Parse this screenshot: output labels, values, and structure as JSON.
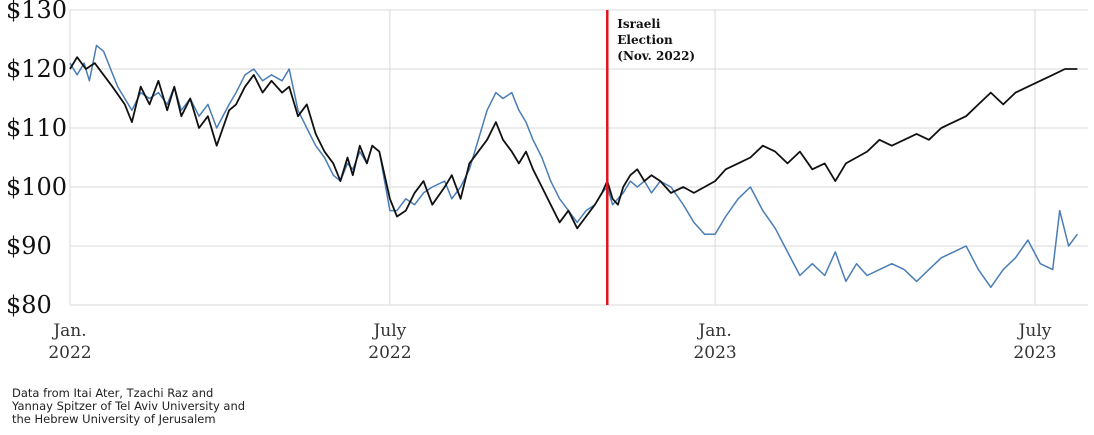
{
  "chart_data": {
    "type": "line",
    "title": "",
    "xlabel": "",
    "ylabel": "",
    "x_range": [
      "2022-01-01",
      "2023-07-31"
    ],
    "ylim": [
      80,
      130
    ],
    "yticks": [
      {
        "value": 130,
        "label": "$130"
      },
      {
        "value": 120,
        "label": "$120"
      },
      {
        "value": 110,
        "label": "$110"
      },
      {
        "value": 100,
        "label": "$100"
      },
      {
        "value": 90,
        "label": "$90"
      },
      {
        "value": 80,
        "label": "$80"
      }
    ],
    "xticks": [
      {
        "date": "2022-01-01",
        "line1": "Jan.",
        "line2": "2022"
      },
      {
        "date": "2022-07-01",
        "line1": "July",
        "line2": "2022"
      },
      {
        "date": "2023-01-01",
        "line1": "Jan.",
        "line2": "2023"
      },
      {
        "date": "2023-07-01",
        "line1": "July",
        "line2": "2023"
      }
    ],
    "grid": true,
    "series": [
      {
        "color": "#111111",
        "points": [
          [
            "2022-01-01",
            120
          ],
          [
            "2022-01-05",
            122
          ],
          [
            "2022-01-10",
            120
          ],
          [
            "2022-01-15",
            121
          ],
          [
            "2022-01-20",
            119
          ],
          [
            "2022-01-25",
            117
          ],
          [
            "2022-02-01",
            114
          ],
          [
            "2022-02-05",
            111
          ],
          [
            "2022-02-10",
            117
          ],
          [
            "2022-02-15",
            114
          ],
          [
            "2022-02-20",
            118
          ],
          [
            "2022-02-25",
            113
          ],
          [
            "2022-03-01",
            117
          ],
          [
            "2022-03-05",
            112
          ],
          [
            "2022-03-10",
            115
          ],
          [
            "2022-03-15",
            110
          ],
          [
            "2022-03-20",
            112
          ],
          [
            "2022-03-25",
            107
          ],
          [
            "2022-04-01",
            113
          ],
          [
            "2022-04-05",
            114
          ],
          [
            "2022-04-10",
            117
          ],
          [
            "2022-04-15",
            119
          ],
          [
            "2022-04-20",
            116
          ],
          [
            "2022-04-25",
            118
          ],
          [
            "2022-05-01",
            116
          ],
          [
            "2022-05-05",
            117
          ],
          [
            "2022-05-10",
            112
          ],
          [
            "2022-05-15",
            114
          ],
          [
            "2022-05-20",
            109
          ],
          [
            "2022-05-25",
            106
          ],
          [
            "2022-05-30",
            104
          ],
          [
            "2022-06-03",
            101
          ],
          [
            "2022-06-07",
            105
          ],
          [
            "2022-06-10",
            102
          ],
          [
            "2022-06-14",
            107
          ],
          [
            "2022-06-18",
            104
          ],
          [
            "2022-06-21",
            107
          ],
          [
            "2022-06-25",
            106
          ],
          [
            "2022-06-28",
            102
          ],
          [
            "2022-07-01",
            98
          ],
          [
            "2022-07-05",
            95
          ],
          [
            "2022-07-10",
            96
          ],
          [
            "2022-07-15",
            99
          ],
          [
            "2022-07-20",
            101
          ],
          [
            "2022-07-25",
            97
          ],
          [
            "2022-08-01",
            100
          ],
          [
            "2022-08-05",
            102
          ],
          [
            "2022-08-10",
            98
          ],
          [
            "2022-08-15",
            104
          ],
          [
            "2022-08-20",
            106
          ],
          [
            "2022-08-25",
            108
          ],
          [
            "2022-08-30",
            111
          ],
          [
            "2022-09-03",
            108
          ],
          [
            "2022-09-08",
            106
          ],
          [
            "2022-09-12",
            104
          ],
          [
            "2022-09-16",
            106
          ],
          [
            "2022-09-20",
            103
          ],
          [
            "2022-09-25",
            100
          ],
          [
            "2022-09-30",
            97
          ],
          [
            "2022-10-05",
            94
          ],
          [
            "2022-10-10",
            96
          ],
          [
            "2022-10-15",
            93
          ],
          [
            "2022-10-20",
            95
          ],
          [
            "2022-10-25",
            97
          ],
          [
            "2022-10-29",
            99
          ],
          [
            "2022-11-01",
            101
          ],
          [
            "2022-11-04",
            98
          ],
          [
            "2022-11-07",
            97
          ],
          [
            "2022-11-10",
            100
          ],
          [
            "2022-11-14",
            102
          ],
          [
            "2022-11-18",
            103
          ],
          [
            "2022-11-22",
            101
          ],
          [
            "2022-11-26",
            102
          ],
          [
            "2022-12-01",
            101
          ],
          [
            "2022-12-07",
            99
          ],
          [
            "2022-12-14",
            100
          ],
          [
            "2022-12-20",
            99
          ],
          [
            "2022-12-26",
            100
          ],
          [
            "2023-01-01",
            101
          ],
          [
            "2023-01-07",
            103
          ],
          [
            "2023-01-14",
            104
          ],
          [
            "2023-01-21",
            105
          ],
          [
            "2023-01-28",
            107
          ],
          [
            "2023-02-04",
            106
          ],
          [
            "2023-02-11",
            104
          ],
          [
            "2023-02-18",
            106
          ],
          [
            "2023-02-25",
            103
          ],
          [
            "2023-03-04",
            104
          ],
          [
            "2023-03-10",
            101
          ],
          [
            "2023-03-16",
            104
          ],
          [
            "2023-03-22",
            105
          ],
          [
            "2023-03-28",
            106
          ],
          [
            "2023-04-04",
            108
          ],
          [
            "2023-04-11",
            107
          ],
          [
            "2023-04-18",
            108
          ],
          [
            "2023-04-25",
            109
          ],
          [
            "2023-05-02",
            108
          ],
          [
            "2023-05-09",
            110
          ],
          [
            "2023-05-16",
            111
          ],
          [
            "2023-05-23",
            112
          ],
          [
            "2023-05-30",
            114
          ],
          [
            "2023-06-06",
            116
          ],
          [
            "2023-06-13",
            114
          ],
          [
            "2023-06-20",
            116
          ],
          [
            "2023-06-27",
            117
          ],
          [
            "2023-07-04",
            118
          ],
          [
            "2023-07-11",
            119
          ],
          [
            "2023-07-18",
            120
          ],
          [
            "2023-07-25",
            120
          ]
        ]
      },
      {
        "color": "#4a7db5",
        "points": [
          [
            "2022-01-01",
            121
          ],
          [
            "2022-01-05",
            119
          ],
          [
            "2022-01-09",
            121
          ],
          [
            "2022-01-12",
            118
          ],
          [
            "2022-01-16",
            124
          ],
          [
            "2022-01-20",
            123
          ],
          [
            "2022-01-24",
            120
          ],
          [
            "2022-01-28",
            117
          ],
          [
            "2022-02-01",
            115
          ],
          [
            "2022-02-05",
            113
          ],
          [
            "2022-02-10",
            116
          ],
          [
            "2022-02-15",
            115
          ],
          [
            "2022-02-20",
            116
          ],
          [
            "2022-02-25",
            114
          ],
          [
            "2022-03-01",
            117
          ],
          [
            "2022-03-05",
            113
          ],
          [
            "2022-03-10",
            115
          ],
          [
            "2022-03-15",
            112
          ],
          [
            "2022-03-20",
            114
          ],
          [
            "2022-03-25",
            110
          ],
          [
            "2022-04-01",
            114
          ],
          [
            "2022-04-05",
            116
          ],
          [
            "2022-04-10",
            119
          ],
          [
            "2022-04-15",
            120
          ],
          [
            "2022-04-20",
            118
          ],
          [
            "2022-04-25",
            119
          ],
          [
            "2022-05-01",
            118
          ],
          [
            "2022-05-05",
            120
          ],
          [
            "2022-05-10",
            113
          ],
          [
            "2022-05-15",
            110
          ],
          [
            "2022-05-20",
            107
          ],
          [
            "2022-05-25",
            105
          ],
          [
            "2022-05-30",
            102
          ],
          [
            "2022-06-03",
            101
          ],
          [
            "2022-06-07",
            104
          ],
          [
            "2022-06-10",
            103
          ],
          [
            "2022-06-14",
            106
          ],
          [
            "2022-06-18",
            104
          ],
          [
            "2022-06-21",
            107
          ],
          [
            "2022-06-25",
            106
          ],
          [
            "2022-06-28",
            101
          ],
          [
            "2022-07-01",
            96
          ],
          [
            "2022-07-05",
            96
          ],
          [
            "2022-07-10",
            98
          ],
          [
            "2022-07-15",
            97
          ],
          [
            "2022-07-20",
            99
          ],
          [
            "2022-07-25",
            100
          ],
          [
            "2022-08-01",
            101
          ],
          [
            "2022-08-05",
            98
          ],
          [
            "2022-08-10",
            100
          ],
          [
            "2022-08-15",
            103
          ],
          [
            "2022-08-20",
            108
          ],
          [
            "2022-08-25",
            113
          ],
          [
            "2022-08-30",
            116
          ],
          [
            "2022-09-03",
            115
          ],
          [
            "2022-09-08",
            116
          ],
          [
            "2022-09-12",
            113
          ],
          [
            "2022-09-16",
            111
          ],
          [
            "2022-09-20",
            108
          ],
          [
            "2022-09-25",
            105
          ],
          [
            "2022-09-30",
            101
          ],
          [
            "2022-10-05",
            98
          ],
          [
            "2022-10-10",
            96
          ],
          [
            "2022-10-15",
            94
          ],
          [
            "2022-10-20",
            96
          ],
          [
            "2022-10-25",
            97
          ],
          [
            "2022-10-29",
            99
          ],
          [
            "2022-11-01",
            100
          ],
          [
            "2022-11-04",
            97
          ],
          [
            "2022-11-07",
            98
          ],
          [
            "2022-11-10",
            99
          ],
          [
            "2022-11-14",
            101
          ],
          [
            "2022-11-18",
            100
          ],
          [
            "2022-11-22",
            101
          ],
          [
            "2022-11-26",
            99
          ],
          [
            "2022-12-01",
            101
          ],
          [
            "2022-12-07",
            100
          ],
          [
            "2022-12-14",
            97
          ],
          [
            "2022-12-20",
            94
          ],
          [
            "2022-12-26",
            92
          ],
          [
            "2023-01-01",
            92
          ],
          [
            "2023-01-07",
            95
          ],
          [
            "2023-01-14",
            98
          ],
          [
            "2023-01-21",
            100
          ],
          [
            "2023-01-28",
            96
          ],
          [
            "2023-02-04",
            93
          ],
          [
            "2023-02-11",
            89
          ],
          [
            "2023-02-18",
            85
          ],
          [
            "2023-02-25",
            87
          ],
          [
            "2023-03-04",
            85
          ],
          [
            "2023-03-10",
            89
          ],
          [
            "2023-03-16",
            84
          ],
          [
            "2023-03-22",
            87
          ],
          [
            "2023-03-28",
            85
          ],
          [
            "2023-04-04",
            86
          ],
          [
            "2023-04-11",
            87
          ],
          [
            "2023-04-18",
            86
          ],
          [
            "2023-04-25",
            84
          ],
          [
            "2023-05-02",
            86
          ],
          [
            "2023-05-09",
            88
          ],
          [
            "2023-05-16",
            89
          ],
          [
            "2023-05-23",
            90
          ],
          [
            "2023-05-30",
            86
          ],
          [
            "2023-06-06",
            83
          ],
          [
            "2023-06-13",
            86
          ],
          [
            "2023-06-20",
            88
          ],
          [
            "2023-06-27",
            91
          ],
          [
            "2023-07-04",
            87
          ],
          [
            "2023-07-11",
            86
          ],
          [
            "2023-07-15",
            96
          ],
          [
            "2023-07-20",
            90
          ],
          [
            "2023-07-25",
            92
          ]
        ]
      }
    ],
    "marker": {
      "date": "2022-11-01",
      "color": "#e0141b",
      "label_lines": [
        "Israeli",
        "Election",
        "(Nov. 2022)"
      ]
    }
  },
  "note_lines": [
    "Data from Itai Ater, Tzachi Raz and",
    "Yannay Spitzer of Tel Aviv University and",
    "the Hebrew University of Jerusalem"
  ]
}
